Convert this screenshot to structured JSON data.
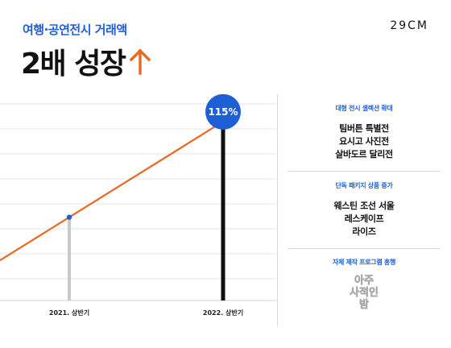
{
  "header": {
    "subtitle": "여행·공연전시 거래액",
    "headline": "2배 성장",
    "brand": "29CM"
  },
  "colors": {
    "accent_blue": "#1f5fd6",
    "trend_orange": "#e8691f",
    "bar_gray": "#c9c9c9",
    "bar_black": "#111111"
  },
  "chart_data": {
    "type": "line",
    "categories": [
      "2021. 상반기",
      "2022. 상반기"
    ],
    "series": [
      {
        "values": [
          100,
          215
        ]
      }
    ],
    "annotations": [
      {
        "category": "2022. 상반기",
        "label": "115%"
      }
    ],
    "ylim": [
      0,
      240
    ],
    "grid": true
  },
  "sidebar": {
    "sections": [
      {
        "title": "대형 전시 셀렉션 확대",
        "items": [
          "팀버튼 특별전",
          "요시고 사진전",
          "살바도르 달리전"
        ]
      },
      {
        "title": "단독 패키지 상품 증가",
        "items": [
          "웨스틴 조선 서울",
          "레스케이프",
          "라이즈"
        ]
      },
      {
        "title": "자체 제작 프로그램 흥행",
        "items": [
          "아주",
          "사적인",
          "밤"
        ]
      }
    ]
  }
}
